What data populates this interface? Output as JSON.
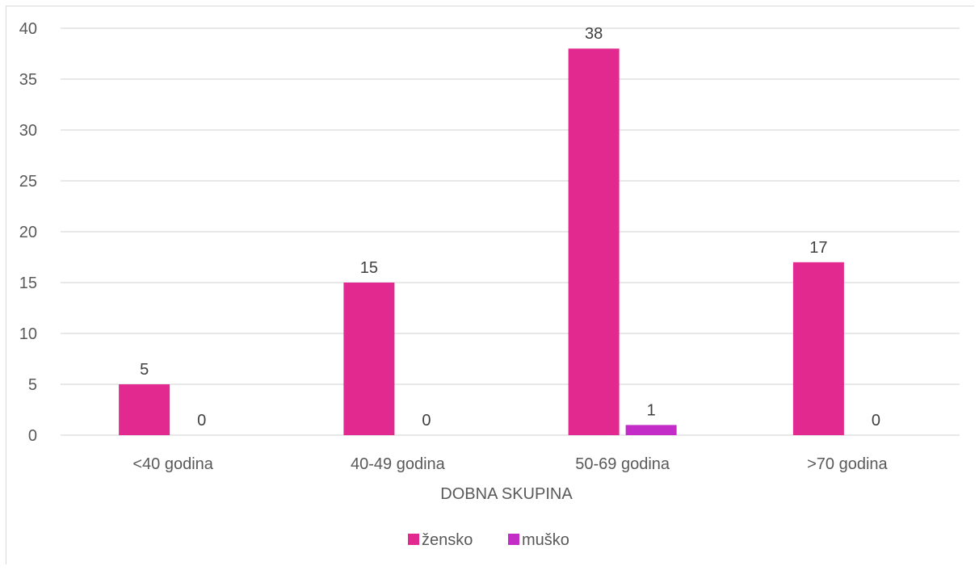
{
  "chart_data": {
    "type": "bar",
    "categories": [
      "<40 godina",
      "40-49 godina",
      "50-69 godina",
      ">70 godina"
    ],
    "series": [
      {
        "name": "žensko",
        "values": [
          5,
          15,
          38,
          17
        ],
        "color": "#e2298f"
      },
      {
        "name": "muško",
        "values": [
          0,
          0,
          1,
          0
        ],
        "color": "#c42cc8"
      }
    ],
    "xlabel": "DOBNA SKUPINA",
    "ylabel": "",
    "ylim": [
      0,
      40
    ],
    "yticks": [
      0,
      5,
      10,
      15,
      20,
      25,
      30,
      35,
      40
    ],
    "grid": true,
    "legend": "bottom"
  }
}
